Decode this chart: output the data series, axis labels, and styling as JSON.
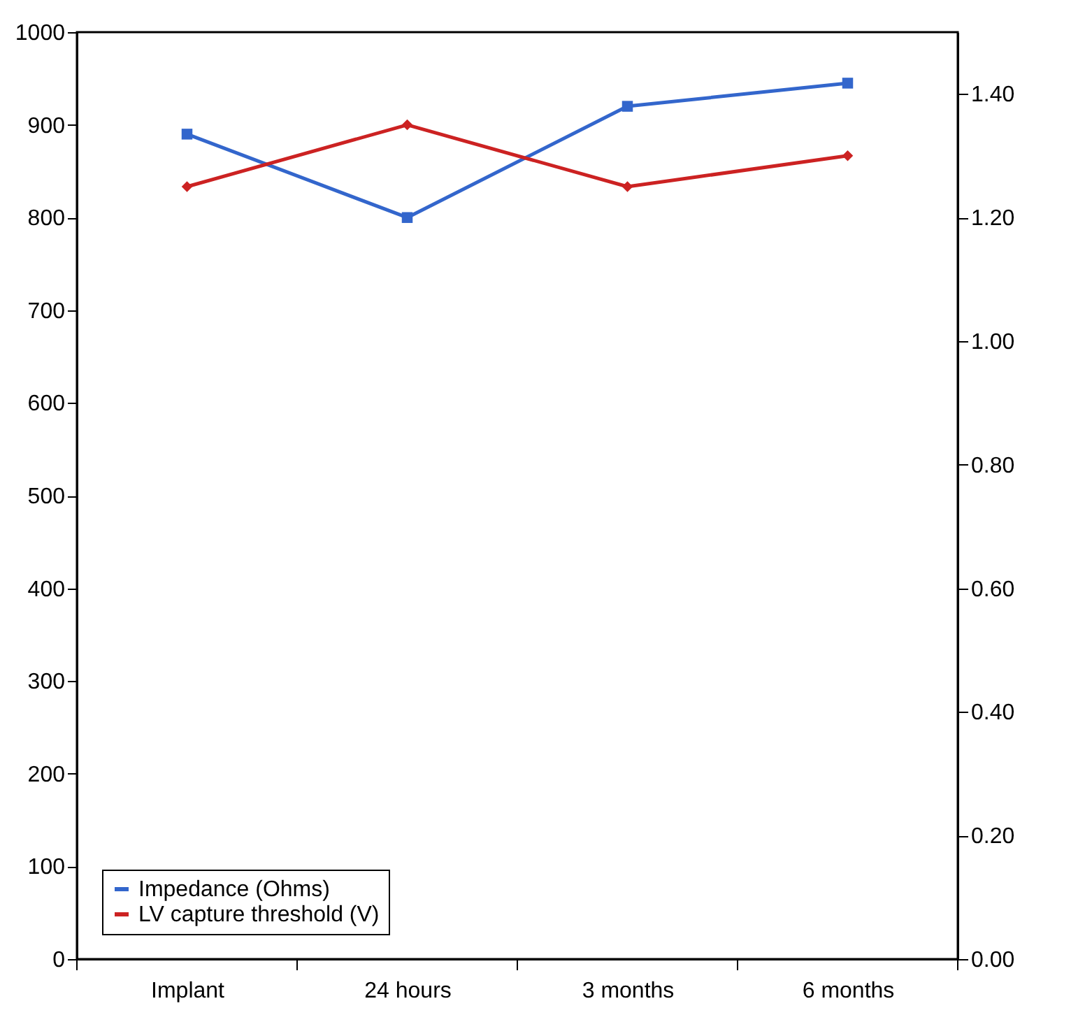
{
  "chart_data": {
    "type": "line",
    "categories": [
      "Implant",
      "24 hours",
      "3 months",
      "6 months"
    ],
    "series": [
      {
        "name": "Impedance (Ohms)",
        "color": "#3366cc",
        "values": [
          890,
          800,
          920,
          945
        ],
        "marker": "square"
      },
      {
        "name": "LV capture threshold (V)",
        "color": "#cc2222",
        "values": [
          1.25,
          1.35,
          1.25,
          1.3
        ],
        "axis": "y2",
        "marker": "diamond"
      }
    ],
    "ylim": [
      0,
      1000
    ],
    "yticks": [
      0,
      100,
      200,
      300,
      400,
      500,
      600,
      700,
      800,
      900,
      1000
    ],
    "y2lim": [
      0,
      1.5
    ],
    "y2ticks": [
      {
        "value": 0,
        "label": "0.00"
      },
      {
        "value": 0.2,
        "label": "0.20"
      },
      {
        "value": 0.4,
        "label": "0.40"
      },
      {
        "value": 0.6,
        "label": "0.60"
      },
      {
        "value": 0.8,
        "label": "0.80"
      },
      {
        "value": 1.0,
        "label": "1.00"
      },
      {
        "value": 1.2,
        "label": "1.20"
      },
      {
        "value": 1.4,
        "label": "1.40"
      }
    ],
    "grid": false,
    "legend": "bottom left",
    "line_style": "solid"
  }
}
